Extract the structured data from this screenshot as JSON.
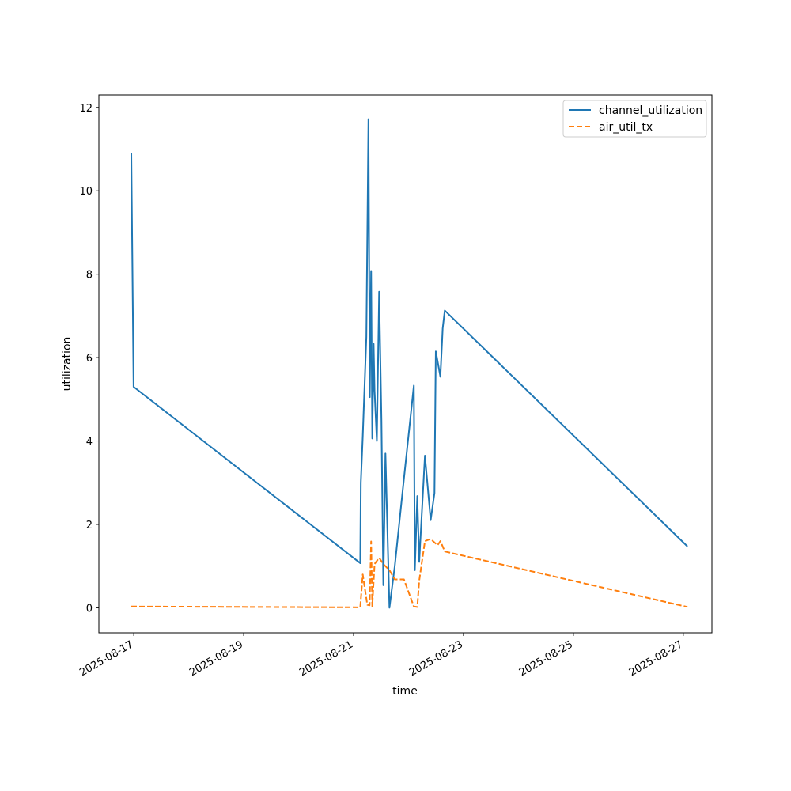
{
  "chart_data": {
    "type": "line",
    "title": "",
    "xlabel": "time",
    "ylabel": "utilization",
    "x_type": "date",
    "xlim": [
      "2025-08-16T08:45",
      "2025-08-27T12:30"
    ],
    "ylim": [
      -0.6,
      12.3
    ],
    "x_ticks": [
      "2025-08-17",
      "2025-08-19",
      "2025-08-21",
      "2025-08-23",
      "2025-08-25",
      "2025-08-27"
    ],
    "y_ticks": [
      0,
      2,
      4,
      6,
      8,
      10,
      12
    ],
    "grid": false,
    "legend_position": "top-right",
    "series": [
      {
        "name": "channel_utilization",
        "color": "#1f77b4",
        "dash": "solid",
        "x": [
          "2025-08-16T22:55",
          "2025-08-16T23:55",
          "2025-08-21T02:55",
          "2025-08-21T03:10",
          "2025-08-21T04:00",
          "2025-08-21T05:35",
          "2025-08-21T06:30",
          "2025-08-21T07:05",
          "2025-08-21T07:40",
          "2025-08-21T08:10",
          "2025-08-21T08:45",
          "2025-08-21T09:10",
          "2025-08-21T10:10",
          "2025-08-21T11:10",
          "2025-08-21T12:10",
          "2025-08-21T13:00",
          "2025-08-21T13:55",
          "2025-08-21T15:40",
          "2025-08-21T18:00",
          "2025-08-21T22:00",
          "2025-08-22T02:20",
          "2025-08-22T02:45",
          "2025-08-22T03:50",
          "2025-08-22T04:40",
          "2025-08-22T07:10",
          "2025-08-22T09:40",
          "2025-08-22T11:20",
          "2025-08-22T11:55",
          "2025-08-22T13:55",
          "2025-08-22T14:55",
          "2025-08-22T15:50",
          "2025-08-27T01:50"
        ],
        "y": [
          10.9,
          5.3,
          1.07,
          3.0,
          4.1,
          6.5,
          11.72,
          5.05,
          8.08,
          4.06,
          6.33,
          5.2,
          4.0,
          7.58,
          4.5,
          0.54,
          3.7,
          0.0,
          1.0,
          3.1,
          5.33,
          0.9,
          2.68,
          1.1,
          3.65,
          2.1,
          2.75,
          6.15,
          5.54,
          6.7,
          7.13,
          1.47
        ]
      },
      {
        "name": "air_util_tx",
        "color": "#ff7f0e",
        "dash": "dashed",
        "x": [
          "2025-08-16T22:55",
          "2025-08-16T23:55",
          "2025-08-21T02:55",
          "2025-08-21T04:00",
          "2025-08-21T06:00",
          "2025-08-21T07:00",
          "2025-08-21T07:40",
          "2025-08-21T08:10",
          "2025-08-21T09:10",
          "2025-08-21T11:10",
          "2025-08-21T13:00",
          "2025-08-21T15:40",
          "2025-08-21T18:00",
          "2025-08-21T22:00",
          "2025-08-22T02:20",
          "2025-08-22T03:50",
          "2025-08-22T04:40",
          "2025-08-22T07:10",
          "2025-08-22T09:40",
          "2025-08-22T12:40",
          "2025-08-22T13:55",
          "2025-08-22T15:50",
          "2025-08-27T01:50"
        ],
        "y": [
          0.03,
          0.03,
          0.01,
          0.8,
          0.07,
          0.06,
          1.59,
          0.03,
          1.05,
          1.2,
          1.05,
          0.9,
          0.68,
          0.68,
          0.03,
          0.02,
          0.65,
          1.6,
          1.65,
          1.5,
          1.6,
          1.35,
          0.02
        ]
      }
    ]
  }
}
